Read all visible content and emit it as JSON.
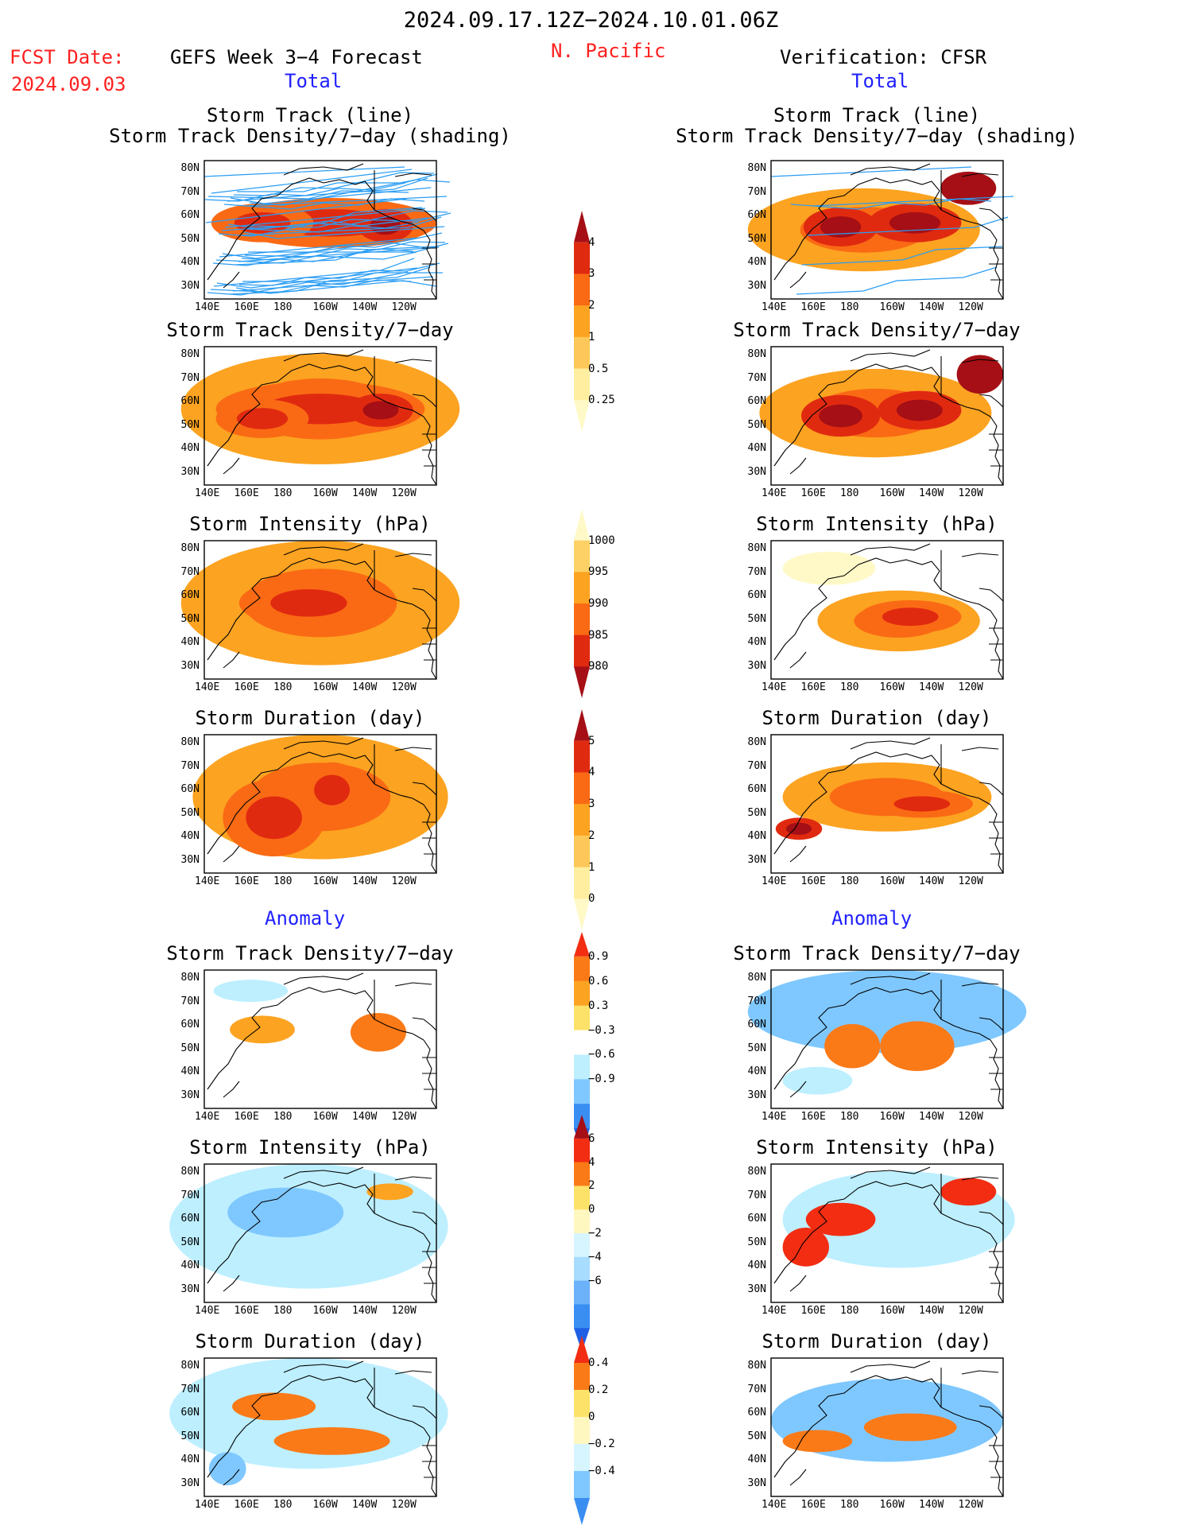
{
  "header": {
    "period": "2024.09.17.12Z−2024.10.01.06Z",
    "region": "N. Pacific",
    "fcst_date_label": "FCST Date:",
    "fcst_date": "2024.09.03",
    "forecast_label": "GEFS Week 3−4 Forecast",
    "verification_label": "Verification: CFSR",
    "total_left": "Total",
    "total_right": "Total",
    "anomaly_left": "Anomaly",
    "anomaly_right": "Anomaly"
  },
  "axes": {
    "lat_labels": [
      "80N",
      "70N",
      "60N",
      "50N",
      "40N",
      "30N"
    ],
    "lon_labels": [
      "140E",
      "160E",
      "180",
      "160W",
      "140W",
      "120W"
    ]
  },
  "panels": {
    "f1": {
      "title1": "Storm Track (line)",
      "title2": "Storm Track Density/7−day (shading)"
    },
    "v1": {
      "title1": "Storm Track (line)",
      "title2": "Storm Track Density/7−day (shading)"
    },
    "f2": {
      "title": "Storm Track Density/7−day"
    },
    "v2": {
      "title": "Storm Track Density/7−day"
    },
    "f3": {
      "title": "Storm Intensity (hPa)"
    },
    "v3": {
      "title": "Storm Intensity (hPa)"
    },
    "f4": {
      "title": "Storm Duration (day)"
    },
    "v4": {
      "title": "Storm Duration (day)"
    },
    "f5": {
      "title": "Storm Track Density/7−day"
    },
    "v5": {
      "title": "Storm Track Density/7−day"
    },
    "f6": {
      "title": "Storm Intensity (hPa)"
    },
    "v6": {
      "title": "Storm Intensity (hPa)"
    },
    "f7": {
      "title": "Storm Duration (day)"
    },
    "v7": {
      "title": "Storm Duration (day)"
    }
  },
  "colorbars": {
    "density": {
      "labels": [
        "4",
        "3",
        "2",
        "1",
        "0.5",
        "0.25"
      ],
      "colors": [
        "#a50f15",
        "#e02a10",
        "#fa6a14",
        "#fca321",
        "#fdc859",
        "#ffeea0",
        "#fff9c8"
      ]
    },
    "intensity": {
      "labels": [
        "1000",
        "995",
        "990",
        "985",
        "980"
      ],
      "colors": [
        "#fff9c8",
        "#fdd166",
        "#fca321",
        "#fa6a14",
        "#e02a10",
        "#a50f15"
      ]
    },
    "duration": {
      "labels": [
        "5",
        "4",
        "3",
        "2",
        "1",
        "0"
      ],
      "colors": [
        "#a50f15",
        "#e02a10",
        "#fa6a14",
        "#fca321",
        "#fdc859",
        "#ffeea0",
        "#fff9c8"
      ]
    },
    "anom_density": {
      "labels": [
        "0.9",
        "0.6",
        "0.3",
        "−0.3",
        "−0.6",
        "−0.9"
      ],
      "colors": [
        "#f22d12",
        "#fa7a18",
        "#fca321",
        "#fde26a",
        "#ffffff",
        "#bdefff",
        "#7fc8ff",
        "#3a8ef2",
        "#1f5fe6"
      ]
    },
    "anom_intensity": {
      "labels": [
        "6",
        "4",
        "2",
        "0",
        "−2",
        "−4",
        "−6"
      ],
      "colors": [
        "#a50f15",
        "#f22d12",
        "#fa7a18",
        "#fde26a",
        "#fff7c0",
        "#d7f5ff",
        "#a7dcff",
        "#6cb2fa",
        "#3a8ef2",
        "#1f5fe6"
      ]
    },
    "anom_duration": {
      "labels": [
        "0.4",
        "0.2",
        "0",
        "−0.2",
        "−0.4"
      ],
      "colors": [
        "#f22d12",
        "#fa7a18",
        "#fde26a",
        "#fff7c0",
        "#d7f5ff",
        "#7fc8ff",
        "#3a8ef2"
      ]
    }
  },
  "colors": {
    "track_line": "#2a9df4",
    "coast_line": "#000000"
  }
}
